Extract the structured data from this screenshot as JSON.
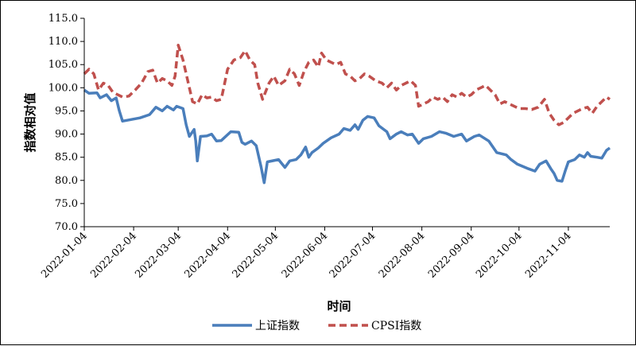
{
  "chart_data": {
    "type": "line",
    "xlabel": "时间",
    "ylabel": "指数相对值",
    "ylim": [
      70.0,
      115.0
    ],
    "yticks": [
      "70.0",
      "75.0",
      "80.0",
      "85.0",
      "90.0",
      "95.0",
      "100.0",
      "105.0",
      "110.0",
      "115.0"
    ],
    "xlim": [
      "2022-01-04",
      "2022-11-30"
    ],
    "xticks": [
      "2022-01-04",
      "2022-02-04",
      "2022-03-04",
      "2022-04-04",
      "2022-05-04",
      "2022-06-04",
      "2022-07-04",
      "2022-08-04",
      "2022-09-04",
      "2022-10-04",
      "2022-11-04"
    ],
    "grid": false,
    "legend": "bottom",
    "series": [
      {
        "name": "上证指数",
        "color": "#4a7ebb",
        "style": "solid",
        "points": [
          [
            "2022-01-04",
            99.5
          ],
          [
            "2022-01-07",
            98.8
          ],
          [
            "2022-01-12",
            98.9
          ],
          [
            "2022-01-14",
            97.8
          ],
          [
            "2022-01-18",
            98.5
          ],
          [
            "2022-01-21",
            97.2
          ],
          [
            "2022-01-24",
            97.8
          ],
          [
            "2022-01-26",
            95.0
          ],
          [
            "2022-01-28",
            92.8
          ],
          [
            "2022-02-08",
            93.5
          ],
          [
            "2022-02-14",
            94.2
          ],
          [
            "2022-02-18",
            95.8
          ],
          [
            "2022-02-22",
            95.0
          ],
          [
            "2022-02-25",
            96.0
          ],
          [
            "2022-03-01",
            95.2
          ],
          [
            "2022-03-03",
            96.0
          ],
          [
            "2022-03-07",
            95.5
          ],
          [
            "2022-03-09",
            92.0
          ],
          [
            "2022-03-11",
            89.5
          ],
          [
            "2022-03-14",
            91.0
          ],
          [
            "2022-03-15",
            88.5
          ],
          [
            "2022-03-16",
            84.2
          ],
          [
            "2022-03-18",
            89.5
          ],
          [
            "2022-03-22",
            89.6
          ],
          [
            "2022-03-25",
            90.0
          ],
          [
            "2022-03-28",
            88.5
          ],
          [
            "2022-03-31",
            88.6
          ],
          [
            "2022-04-06",
            90.5
          ],
          [
            "2022-04-11",
            90.4
          ],
          [
            "2022-04-13",
            88.2
          ],
          [
            "2022-04-15",
            87.8
          ],
          [
            "2022-04-19",
            88.5
          ],
          [
            "2022-04-22",
            87.5
          ],
          [
            "2022-04-25",
            83.0
          ],
          [
            "2022-04-27",
            79.5
          ],
          [
            "2022-04-29",
            84.0
          ],
          [
            "2022-05-06",
            84.5
          ],
          [
            "2022-05-10",
            82.8
          ],
          [
            "2022-05-13",
            84.2
          ],
          [
            "2022-05-17",
            84.5
          ],
          [
            "2022-05-20",
            85.5
          ],
          [
            "2022-05-23",
            87.2
          ],
          [
            "2022-05-25",
            85.0
          ],
          [
            "2022-05-27",
            86.0
          ],
          [
            "2022-05-31",
            87.0
          ],
          [
            "2022-06-03",
            88.0
          ],
          [
            "2022-06-08",
            89.2
          ],
          [
            "2022-06-13",
            90.0
          ],
          [
            "2022-06-16",
            91.2
          ],
          [
            "2022-06-20",
            90.8
          ],
          [
            "2022-06-23",
            92.0
          ],
          [
            "2022-06-25",
            91.0
          ],
          [
            "2022-06-28",
            93.0
          ],
          [
            "2022-07-01",
            93.8
          ],
          [
            "2022-07-05",
            93.5
          ],
          [
            "2022-07-08",
            91.8
          ],
          [
            "2022-07-13",
            90.5
          ],
          [
            "2022-07-15",
            89.0
          ],
          [
            "2022-07-19",
            90.0
          ],
          [
            "2022-07-22",
            90.5
          ],
          [
            "2022-07-26",
            89.8
          ],
          [
            "2022-07-29",
            90.0
          ],
          [
            "2022-08-02",
            88.0
          ],
          [
            "2022-08-05",
            89.0
          ],
          [
            "2022-08-10",
            89.5
          ],
          [
            "2022-08-15",
            90.5
          ],
          [
            "2022-08-19",
            90.2
          ],
          [
            "2022-08-24",
            89.5
          ],
          [
            "2022-08-29",
            90.0
          ],
          [
            "2022-09-01",
            88.5
          ],
          [
            "2022-09-06",
            89.5
          ],
          [
            "2022-09-09",
            89.8
          ],
          [
            "2022-09-15",
            88.5
          ],
          [
            "2022-09-20",
            86.0
          ],
          [
            "2022-09-26",
            85.5
          ],
          [
            "2022-09-29",
            84.5
          ],
          [
            "2022-10-03",
            83.5
          ],
          [
            "2022-10-10",
            82.5
          ],
          [
            "2022-10-14",
            82.0
          ],
          [
            "2022-10-17",
            83.5
          ],
          [
            "2022-10-21",
            84.2
          ],
          [
            "2022-10-24",
            82.5
          ],
          [
            "2022-10-26",
            81.5
          ],
          [
            "2022-10-28",
            80.0
          ],
          [
            "2022-10-31",
            79.8
          ],
          [
            "2022-11-02",
            82.0
          ],
          [
            "2022-11-04",
            84.0
          ],
          [
            "2022-11-08",
            84.5
          ],
          [
            "2022-11-11",
            85.5
          ],
          [
            "2022-11-14",
            85.0
          ],
          [
            "2022-11-16",
            86.0
          ],
          [
            "2022-11-18",
            85.2
          ],
          [
            "2022-11-22",
            85.0
          ],
          [
            "2022-11-25",
            84.8
          ],
          [
            "2022-11-28",
            86.5
          ],
          [
            "2022-11-30",
            87.0
          ]
        ]
      },
      {
        "name": "CPSI指数",
        "color": "#c0504d",
        "style": "dashed",
        "points": [
          [
            "2022-01-04",
            103.0
          ],
          [
            "2022-01-07",
            104.0
          ],
          [
            "2022-01-10",
            103.0
          ],
          [
            "2022-01-13",
            99.5
          ],
          [
            "2022-01-16",
            101.0
          ],
          [
            "2022-01-19",
            100.5
          ],
          [
            "2022-01-22",
            99.0
          ],
          [
            "2022-01-25",
            98.5
          ],
          [
            "2022-01-28",
            98.0
          ],
          [
            "2022-02-01",
            98.2
          ],
          [
            "2022-02-05",
            99.5
          ],
          [
            "2022-02-09",
            101.0
          ],
          [
            "2022-02-13",
            103.5
          ],
          [
            "2022-02-16",
            103.8
          ],
          [
            "2022-02-19",
            101.0
          ],
          [
            "2022-02-22",
            102.0
          ],
          [
            "2022-02-25",
            101.5
          ],
          [
            "2022-02-28",
            100.5
          ],
          [
            "2022-03-02",
            102.5
          ],
          [
            "2022-03-04",
            109.2
          ],
          [
            "2022-03-07",
            106.0
          ],
          [
            "2022-03-10",
            101.5
          ],
          [
            "2022-03-13",
            97.0
          ],
          [
            "2022-03-16",
            96.5
          ],
          [
            "2022-03-19",
            98.5
          ],
          [
            "2022-03-22",
            97.8
          ],
          [
            "2022-03-25",
            98.0
          ],
          [
            "2022-03-28",
            97.2
          ],
          [
            "2022-03-31",
            97.5
          ],
          [
            "2022-04-04",
            104.0
          ],
          [
            "2022-04-08",
            106.0
          ],
          [
            "2022-04-12",
            106.5
          ],
          [
            "2022-04-15",
            108.0
          ],
          [
            "2022-04-18",
            106.0
          ],
          [
            "2022-04-21",
            105.0
          ],
          [
            "2022-04-23",
            101.0
          ],
          [
            "2022-04-26",
            97.5
          ],
          [
            "2022-04-30",
            101.0
          ],
          [
            "2022-05-03",
            102.5
          ],
          [
            "2022-05-06",
            100.5
          ],
          [
            "2022-05-10",
            101.5
          ],
          [
            "2022-05-13",
            104.0
          ],
          [
            "2022-05-16",
            103.0
          ],
          [
            "2022-05-19",
            100.5
          ],
          [
            "2022-05-22",
            103.5
          ],
          [
            "2022-05-25",
            105.5
          ],
          [
            "2022-05-28",
            106.0
          ],
          [
            "2022-05-31",
            104.5
          ],
          [
            "2022-06-02",
            107.5
          ],
          [
            "2022-06-05",
            106.0
          ],
          [
            "2022-06-08",
            105.5
          ],
          [
            "2022-06-11",
            105.0
          ],
          [
            "2022-06-14",
            105.5
          ],
          [
            "2022-06-17",
            103.0
          ],
          [
            "2022-06-20",
            102.5
          ],
          [
            "2022-06-23",
            101.5
          ],
          [
            "2022-06-26",
            102.0
          ],
          [
            "2022-06-29",
            103.0
          ],
          [
            "2022-07-02",
            102.5
          ],
          [
            "2022-07-06",
            101.5
          ],
          [
            "2022-07-10",
            101.0
          ],
          [
            "2022-07-13",
            100.0
          ],
          [
            "2022-07-16",
            101.0
          ],
          [
            "2022-07-19",
            99.5
          ],
          [
            "2022-07-22",
            100.5
          ],
          [
            "2022-07-25",
            101.0
          ],
          [
            "2022-07-28",
            101.5
          ],
          [
            "2022-07-31",
            100.5
          ],
          [
            "2022-08-02",
            96.0
          ],
          [
            "2022-08-05",
            96.5
          ],
          [
            "2022-08-08",
            97.0
          ],
          [
            "2022-08-11",
            98.0
          ],
          [
            "2022-08-14",
            97.5
          ],
          [
            "2022-08-17",
            98.0
          ],
          [
            "2022-08-20",
            97.0
          ],
          [
            "2022-08-23",
            98.5
          ],
          [
            "2022-08-26",
            98.0
          ],
          [
            "2022-08-29",
            98.8
          ],
          [
            "2022-09-01",
            98.0
          ],
          [
            "2022-09-04",
            98.5
          ],
          [
            "2022-09-07",
            99.5
          ],
          [
            "2022-09-10",
            100.0
          ],
          [
            "2022-09-13",
            100.5
          ],
          [
            "2022-09-16",
            99.5
          ],
          [
            "2022-09-19",
            98.5
          ],
          [
            "2022-09-22",
            96.5
          ],
          [
            "2022-09-25",
            97.0
          ],
          [
            "2022-09-28",
            96.5
          ],
          [
            "2022-10-01",
            96.0
          ],
          [
            "2022-10-04",
            95.5
          ],
          [
            "2022-10-08",
            95.5
          ],
          [
            "2022-10-12",
            95.3
          ],
          [
            "2022-10-16",
            95.8
          ],
          [
            "2022-10-20",
            97.5
          ],
          [
            "2022-10-23",
            94.5
          ],
          [
            "2022-10-26",
            93.0
          ],
          [
            "2022-10-29",
            92.0
          ],
          [
            "2022-11-01",
            92.5
          ],
          [
            "2022-11-04",
            93.5
          ],
          [
            "2022-11-07",
            94.5
          ],
          [
            "2022-11-10",
            95.0
          ],
          [
            "2022-11-13",
            95.5
          ],
          [
            "2022-11-16",
            95.8
          ],
          [
            "2022-11-19",
            94.5
          ],
          [
            "2022-11-22",
            96.0
          ],
          [
            "2022-11-25",
            97.0
          ],
          [
            "2022-11-28",
            98.0
          ],
          [
            "2022-11-30",
            97.5
          ]
        ]
      }
    ]
  }
}
